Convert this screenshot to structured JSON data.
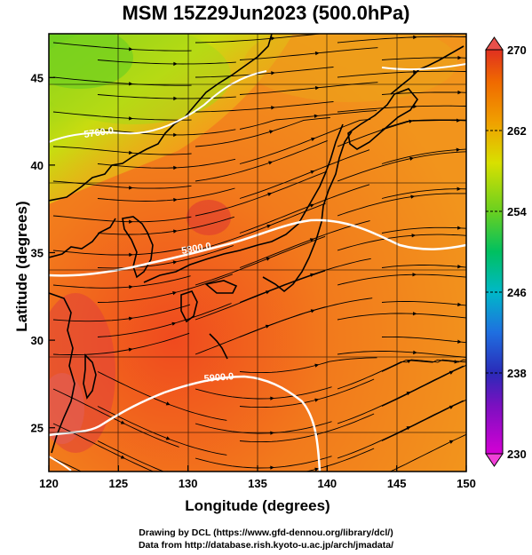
{
  "title": "MSM 15Z29Jun2023 (500.0hPa)",
  "x_axis": {
    "label": "Longitude (degrees)",
    "range": [
      120,
      150
    ],
    "ticks": [
      "120",
      "125",
      "130",
      "135",
      "140",
      "145",
      "150"
    ]
  },
  "y_axis": {
    "label": "Latitude  (degrees)",
    "range": [
      22.5,
      47.5
    ],
    "ticks": [
      "25",
      "30",
      "35",
      "40",
      "45"
    ]
  },
  "colorbar": {
    "range": [
      230,
      270
    ],
    "ticks": [
      "230",
      "238",
      "246",
      "254",
      "262",
      "270"
    ],
    "colors": [
      "#d400d4",
      "#2a2ab8",
      "#1f6fe0",
      "#00b8c8",
      "#00c060",
      "#6ad020",
      "#d8e000",
      "#f0a000",
      "#f06a00",
      "#e03020"
    ]
  },
  "contours": [
    {
      "label": "5760.0"
    },
    {
      "label": "5800.0"
    },
    {
      "label": "5900.0"
    }
  ],
  "credits": {
    "line1": "Drawing by DCL (https://www.gfd-dennou.org/library/dcl/)",
    "line2": "Data from http://database.rish.kyoto-u.ac.jp/arch/jmadata/"
  }
}
